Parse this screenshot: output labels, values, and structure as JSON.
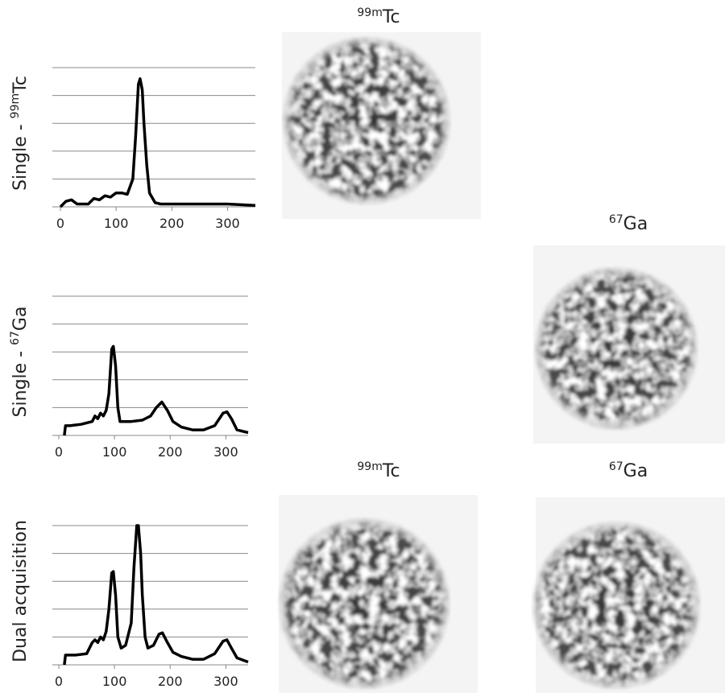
{
  "chart_data": [
    {
      "type": "line",
      "ylabel": {
        "prefix": "Single - ",
        "sup": "99m",
        "element": "Tc"
      },
      "x": [
        0,
        10,
        20,
        30,
        50,
        60,
        70,
        80,
        90,
        100,
        110,
        120,
        130,
        135,
        140,
        143,
        147,
        150,
        155,
        160,
        170,
        180,
        200,
        250,
        300,
        350
      ],
      "values": [
        0,
        0.2,
        0.25,
        0.1,
        0.1,
        0.3,
        0.25,
        0.4,
        0.35,
        0.5,
        0.5,
        0.45,
        1.0,
        2.5,
        4.4,
        4.6,
        4.2,
        3.0,
        1.5,
        0.5,
        0.15,
        0.1,
        0.1,
        0.1,
        0.1,
        0.05
      ],
      "color": "#000000",
      "xlim": [
        0,
        350
      ],
      "xticks": [
        0,
        100,
        200,
        300
      ],
      "ylim": [
        0,
        5
      ],
      "yticks": [
        1,
        2,
        3,
        4,
        5
      ],
      "grid": true
    },
    {
      "type": "line",
      "ylabel": {
        "prefix": "Single - ",
        "sup": "67",
        "element": "Ga"
      },
      "x": [
        10,
        12,
        20,
        40,
        60,
        65,
        70,
        75,
        80,
        85,
        90,
        95,
        98,
        102,
        106,
        110,
        130,
        150,
        165,
        175,
        185,
        195,
        205,
        220,
        240,
        260,
        280,
        295,
        302,
        310,
        320,
        340
      ],
      "values": [
        0,
        0.35,
        0.35,
        0.4,
        0.5,
        0.7,
        0.6,
        0.8,
        0.7,
        0.9,
        1.5,
        3.1,
        3.2,
        2.5,
        1.0,
        0.5,
        0.5,
        0.55,
        0.7,
        1.0,
        1.2,
        0.9,
        0.5,
        0.3,
        0.2,
        0.2,
        0.35,
        0.8,
        0.85,
        0.6,
        0.2,
        0.1
      ],
      "color": "#000000",
      "xlim": [
        0,
        340
      ],
      "xticks": [
        0,
        100,
        200,
        300
      ],
      "ylim": [
        0,
        5
      ],
      "yticks": [
        1,
        2,
        3,
        4,
        5
      ],
      "grid": true
    },
    {
      "type": "line",
      "ylabel": {
        "prefix": "Dual acquisition"
      },
      "x": [
        10,
        12,
        30,
        50,
        60,
        65,
        70,
        75,
        80,
        85,
        90,
        95,
        98,
        102,
        106,
        112,
        120,
        130,
        135,
        140,
        143,
        147,
        150,
        155,
        160,
        170,
        180,
        186,
        195,
        205,
        220,
        240,
        260,
        280,
        295,
        302,
        310,
        320,
        340
      ],
      "values": [
        0,
        0.35,
        0.35,
        0.4,
        0.8,
        0.9,
        0.8,
        1.0,
        0.9,
        1.2,
        2.0,
        3.3,
        3.35,
        2.5,
        1.0,
        0.6,
        0.7,
        1.5,
        3.5,
        5.0,
        5.0,
        4.0,
        2.5,
        1.0,
        0.6,
        0.7,
        1.1,
        1.15,
        0.8,
        0.45,
        0.3,
        0.2,
        0.2,
        0.4,
        0.85,
        0.9,
        0.6,
        0.25,
        0.1
      ],
      "color": "#000000",
      "xlim": [
        0,
        340
      ],
      "xticks": [
        0,
        100,
        200,
        300
      ],
      "ylim": [
        0,
        5
      ],
      "yticks": [
        1,
        2,
        3,
        4,
        5
      ],
      "grid": true
    }
  ],
  "images": [
    {
      "sup": "99m",
      "element": "Tc"
    },
    {
      "sup": "67",
      "element": "Ga"
    },
    {
      "sup": "99m",
      "element": "Tc"
    },
    {
      "sup": "67",
      "element": "Ga"
    }
  ]
}
